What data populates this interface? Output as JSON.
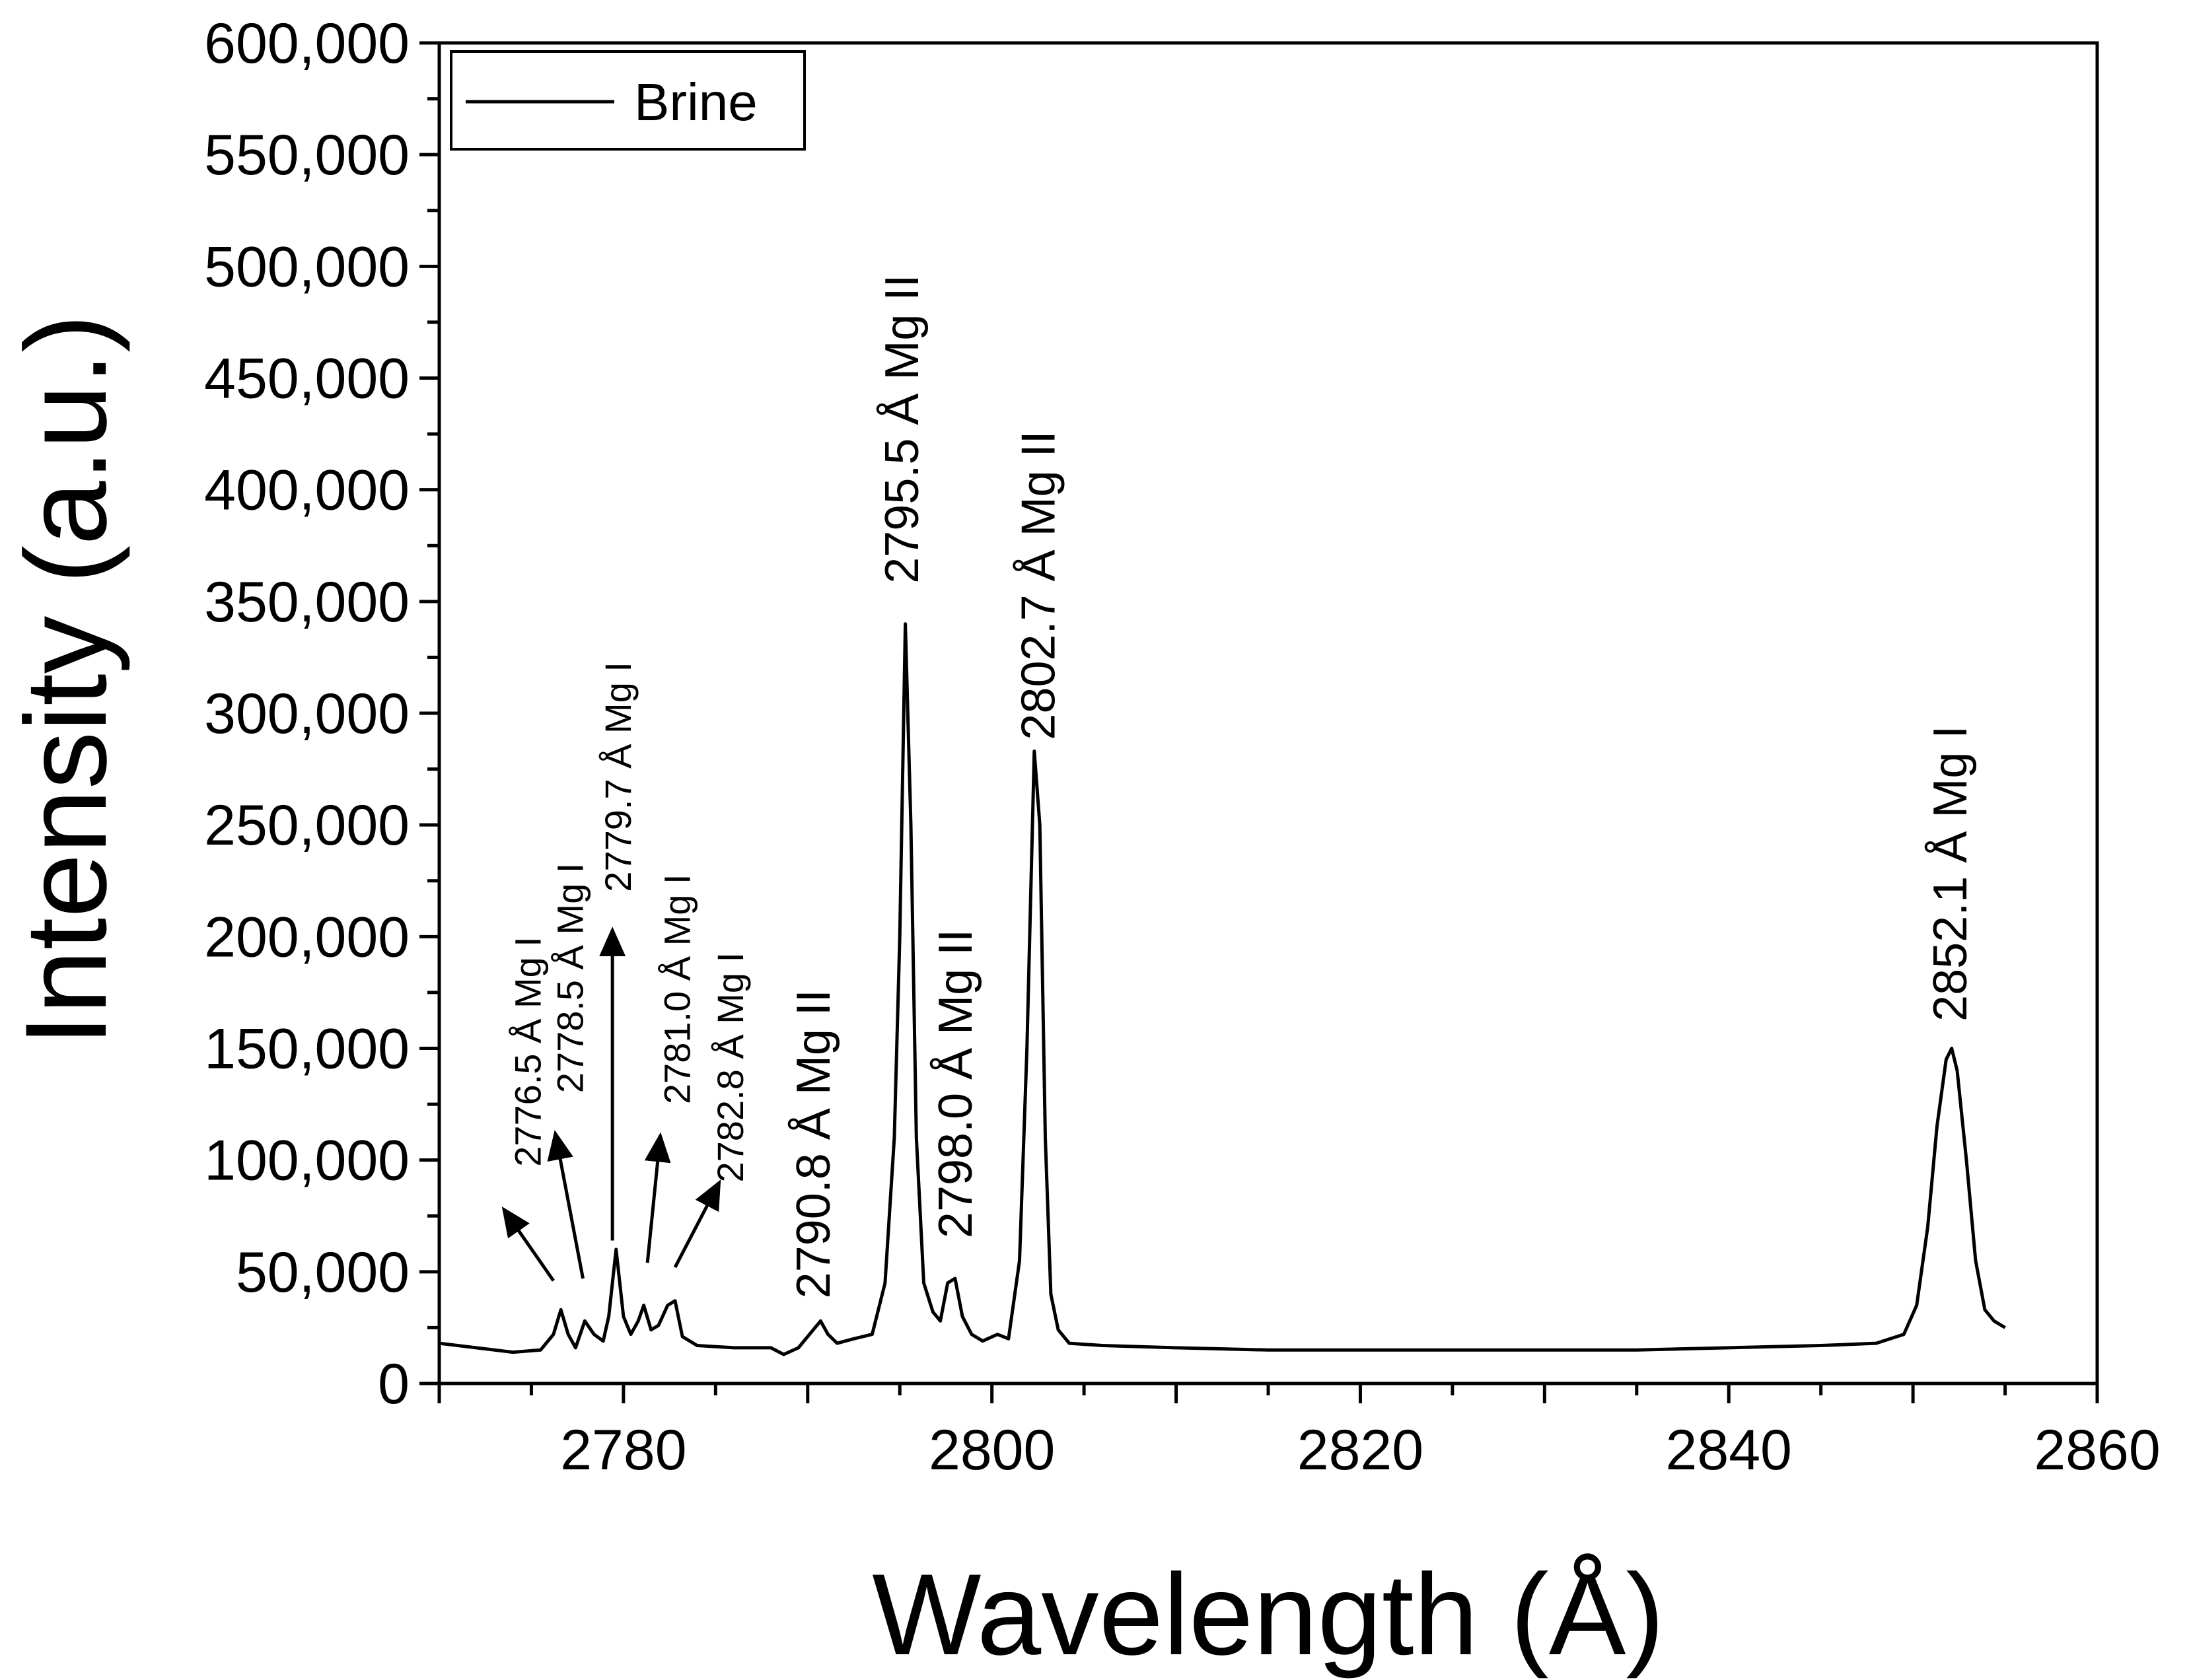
{
  "chart_data": {
    "type": "line",
    "title": "",
    "xlabel": "Wavelength (Å)",
    "ylabel": "Intensity (a.u.)",
    "xlim": [
      2770,
      2860
    ],
    "ylim": [
      0,
      600000
    ],
    "xticks": [
      2780,
      2800,
      2820,
      2840,
      2860
    ],
    "xtick_labels": [
      "2780",
      "2800",
      "2820",
      "2840",
      "2860"
    ],
    "yticks": [
      0,
      50000,
      100000,
      150000,
      200000,
      250000,
      300000,
      350000,
      400000,
      450000,
      500000,
      550000,
      600000
    ],
    "ytick_labels": [
      "0",
      "50,000",
      "100,000",
      "150,000",
      "200,000",
      "250,000",
      "300,000",
      "350,000",
      "400,000",
      "450,000",
      "500,000",
      "550,000",
      "600,000"
    ],
    "legend": {
      "position": "top-left",
      "entries": [
        "Brine"
      ]
    },
    "series": [
      {
        "name": "Brine",
        "color": "#000000",
        "x": [
          2770,
          2772,
          2774,
          2775.5,
          2776.2,
          2776.6,
          2777.0,
          2777.4,
          2777.9,
          2778.4,
          2778.9,
          2779.2,
          2779.6,
          2780.0,
          2780.4,
          2780.8,
          2781.1,
          2781.5,
          2781.9,
          2782.4,
          2782.8,
          2783.2,
          2784,
          2786,
          2788,
          2788.7,
          2789.5,
          2790.3,
          2790.7,
          2791.1,
          2791.6,
          2792.5,
          2793.5,
          2794.2,
          2794.7,
          2795.0,
          2795.3,
          2795.6,
          2795.9,
          2796.3,
          2796.8,
          2797.2,
          2797.6,
          2798.0,
          2798.4,
          2798.9,
          2799.5,
          2800.3,
          2800.9,
          2801.5,
          2801.9,
          2802.3,
          2802.6,
          2802.9,
          2803.2,
          2803.6,
          2804.2,
          2806,
          2810,
          2815,
          2820,
          2825,
          2830,
          2835,
          2840,
          2845,
          2848,
          2849.5,
          2850.2,
          2850.8,
          2851.3,
          2851.8,
          2852.1,
          2852.4,
          2852.9,
          2853.4,
          2853.9,
          2854.4,
          2855
        ],
        "y": [
          18000,
          16000,
          14000,
          15000,
          22000,
          33000,
          22000,
          16000,
          28000,
          22000,
          19000,
          30000,
          60000,
          30000,
          22000,
          28000,
          35000,
          24000,
          26000,
          35000,
          37000,
          21000,
          17000,
          16000,
          16000,
          13000,
          16000,
          24000,
          28000,
          22000,
          18000,
          20000,
          22000,
          45000,
          110000,
          200000,
          340000,
          250000,
          110000,
          45000,
          32000,
          28000,
          45000,
          47000,
          30000,
          22000,
          19000,
          22000,
          20000,
          55000,
          150000,
          283000,
          250000,
          110000,
          40000,
          24000,
          18000,
          17000,
          16000,
          15000,
          15000,
          15000,
          15000,
          15000,
          16000,
          17000,
          18000,
          22000,
          35000,
          70000,
          115000,
          145000,
          150000,
          140000,
          100000,
          55000,
          33000,
          28000,
          25000
        ]
      }
    ],
    "annotations": [
      {
        "text": "2776.5 Å Mg I",
        "size": "small",
        "x": 2775.5,
        "y": 97000,
        "arrow": true,
        "arrow_from": [
          2776.2,
          46000
        ],
        "arrow_to": [
          2773.5,
          78000
        ]
      },
      {
        "text": "2778.5 Å Mg I",
        "size": "small",
        "x": 2777.8,
        "y": 130000,
        "arrow": true,
        "arrow_from": [
          2777.8,
          47000
        ],
        "arrow_to": [
          2776.3,
          112000
        ]
      },
      {
        "text": "2779.7 Å Mg I",
        "size": "small",
        "x": 2780.4,
        "y": 220000,
        "arrow": true,
        "arrow_from": [
          2779.4,
          64000
        ],
        "arrow_to": [
          2779.4,
          203000
        ]
      },
      {
        "text": "2781.0 Å Mg I",
        "size": "small",
        "x": 2783.6,
        "y": 125000,
        "arrow": true,
        "arrow_from": [
          2781.3,
          54000
        ],
        "arrow_to": [
          2782.0,
          111000
        ]
      },
      {
        "text": "2782.8 Å Mg I",
        "size": "small",
        "x": 2786.5,
        "y": 90000,
        "arrow": true,
        "arrow_from": [
          2782.8,
          52000
        ],
        "arrow_to": [
          2785.2,
          90000
        ]
      },
      {
        "text": "2790.8 Å Mg II",
        "size": "big",
        "x": 2791.2,
        "y": 38000,
        "arrow": false
      },
      {
        "text": "2795.5 Å Mg II",
        "size": "big",
        "x": 2796.0,
        "y": 358000,
        "arrow": false
      },
      {
        "text": "2798.0 Å Mg II",
        "size": "big",
        "x": 2798.9,
        "y": 65000,
        "arrow": false
      },
      {
        "text": "2802.7 Å Mg II",
        "size": "big",
        "x": 2803.4,
        "y": 288000,
        "arrow": false
      },
      {
        "text": "2852.1 Å Mg I",
        "size": "big",
        "x": 2852.9,
        "y": 162000,
        "arrow": false
      }
    ]
  }
}
